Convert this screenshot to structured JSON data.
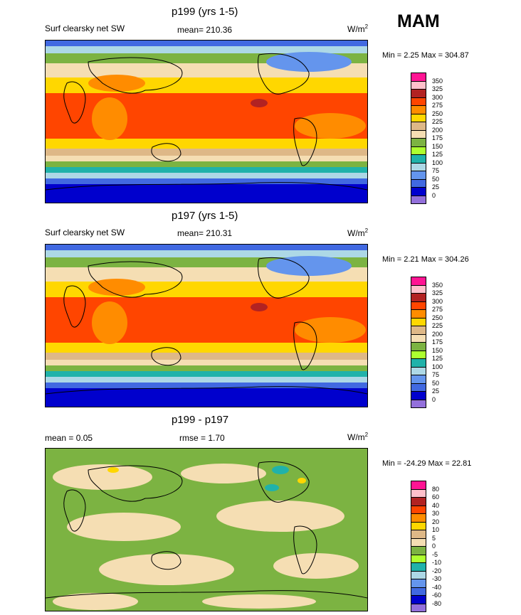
{
  "season": "MAM",
  "panels": [
    {
      "id": "top",
      "title": "p199 (yrs 1-5)",
      "left_label": "Surf clearsky net SW",
      "mean_label": "mean= 210.36",
      "units_base": "W/m",
      "units_exp": "2",
      "minmax": "Min =   2.25 Max = 304.87",
      "colorbar": {
        "labels": [
          "350",
          "325",
          "300",
          "275",
          "250",
          "225",
          "200",
          "175",
          "150",
          "125",
          "100",
          "75",
          "50",
          "25",
          "0"
        ],
        "colors": [
          "#ff1493",
          "#ffc0cb",
          "#b22222",
          "#ff4500",
          "#ff8c00",
          "#ffd700",
          "#deb887",
          "#f5deb3",
          "#7cb342",
          "#adff2f",
          "#20b2aa",
          "#add8e6",
          "#6495ed",
          "#4169e1",
          "#0000cd",
          "#9370db"
        ]
      }
    },
    {
      "id": "middle",
      "title": "p197 (yrs 1-5)",
      "left_label": "Surf clearsky net SW",
      "mean_label": "mean= 210.31",
      "units_base": "W/m",
      "units_exp": "2",
      "minmax": "Min =   2.21 Max = 304.26",
      "colorbar": {
        "labels": [
          "350",
          "325",
          "300",
          "275",
          "250",
          "225",
          "200",
          "175",
          "150",
          "125",
          "100",
          "75",
          "50",
          "25",
          "0"
        ],
        "colors": [
          "#ff1493",
          "#ffc0cb",
          "#b22222",
          "#ff4500",
          "#ff8c00",
          "#ffd700",
          "#deb887",
          "#f5deb3",
          "#7cb342",
          "#adff2f",
          "#20b2aa",
          "#add8e6",
          "#6495ed",
          "#4169e1",
          "#0000cd",
          "#9370db"
        ]
      }
    },
    {
      "id": "bottom",
      "title": "p199 - p197",
      "left_label": "mean =   0.05",
      "mean_label": "rmse =   1.70",
      "units_base": "W/m",
      "units_exp": "2",
      "minmax": "Min = -24.29 Max =  22.81",
      "colorbar": {
        "labels": [
          "80",
          "60",
          "40",
          "30",
          "20",
          "10",
          "5",
          "0",
          "-5",
          "-10",
          "-20",
          "-30",
          "-40",
          "-60",
          "-80"
        ],
        "colors": [
          "#ff1493",
          "#ffc0cb",
          "#b22222",
          "#ff4500",
          "#ff8c00",
          "#ffd700",
          "#deb887",
          "#f5deb3",
          "#7cb342",
          "#adff2f",
          "#20b2aa",
          "#add8e6",
          "#6495ed",
          "#4169e1",
          "#0000cd",
          "#9370db"
        ]
      }
    }
  ],
  "chart_data": [
    {
      "type": "heatmap",
      "title": "p199 (yrs 1-5)",
      "variable": "Surf clearsky net SW",
      "mean": 210.36,
      "min": 2.25,
      "max": 304.87,
      "units": "W/m2",
      "levels": [
        0,
        25,
        50,
        75,
        100,
        125,
        150,
        175,
        200,
        225,
        250,
        275,
        300,
        325,
        350
      ]
    },
    {
      "type": "heatmap",
      "title": "p197 (yrs 1-5)",
      "variable": "Surf clearsky net SW",
      "mean": 210.31,
      "min": 2.21,
      "max": 304.26,
      "units": "W/m2",
      "levels": [
        0,
        25,
        50,
        75,
        100,
        125,
        150,
        175,
        200,
        225,
        250,
        275,
        300,
        325,
        350
      ]
    },
    {
      "type": "heatmap",
      "title": "p199 - p197",
      "mean": 0.05,
      "rmse": 1.7,
      "min": -24.29,
      "max": 22.81,
      "units": "W/m2",
      "levels": [
        -80,
        -60,
        -40,
        -30,
        -20,
        -10,
        -5,
        0,
        5,
        10,
        20,
        30,
        40,
        60,
        80
      ]
    }
  ]
}
